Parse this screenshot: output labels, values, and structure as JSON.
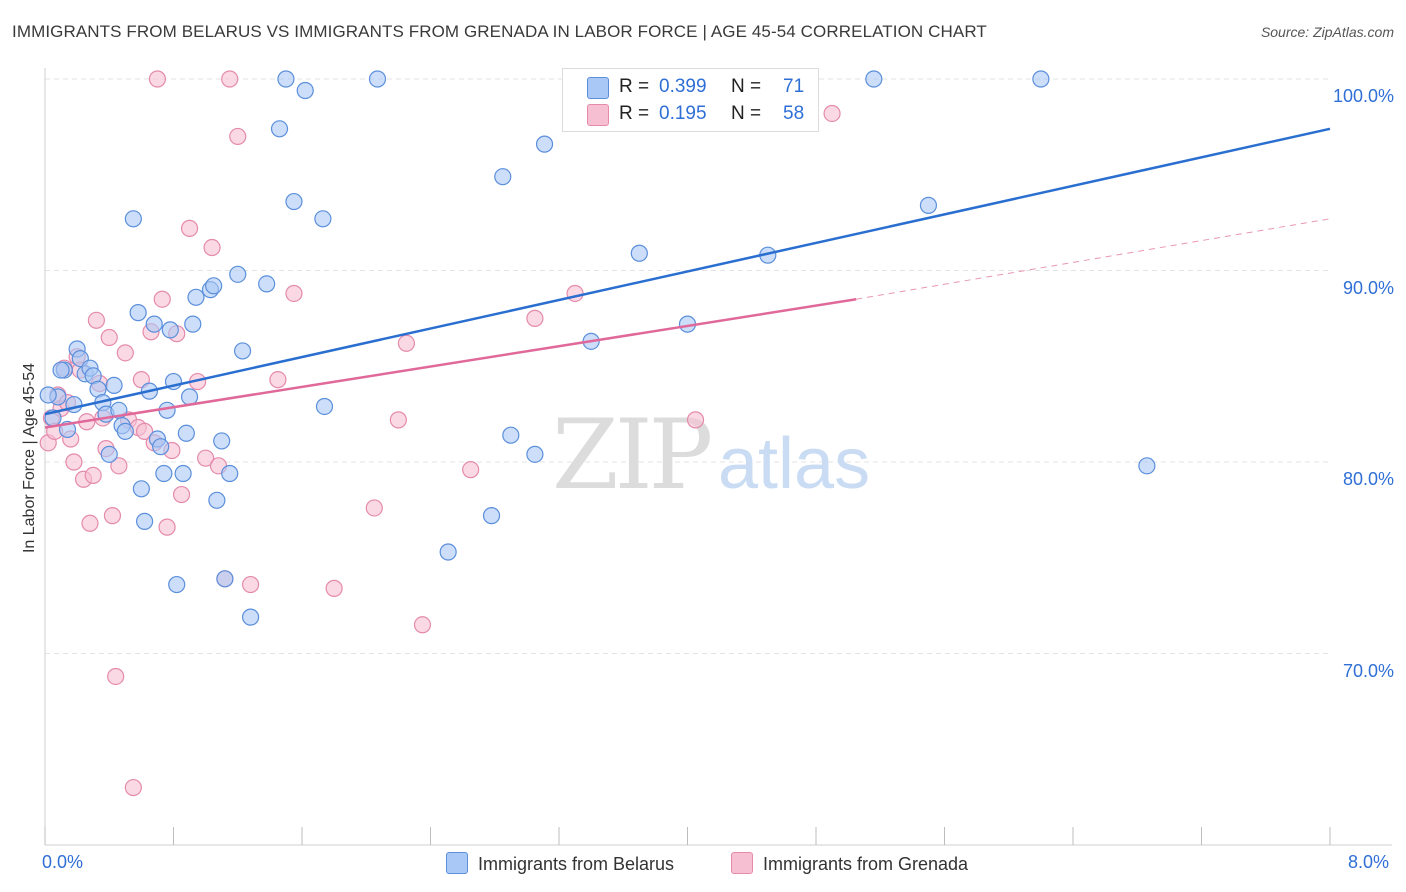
{
  "title": "IMMIGRANTS FROM BELARUS VS IMMIGRANTS FROM GRENADA IN LABOR FORCE | AGE 45-54 CORRELATION CHART",
  "source": "Source: ZipAtlas.com",
  "watermark": {
    "zip": "ZIP",
    "atlas": "atlas"
  },
  "legend": {
    "rows": [
      {
        "r_label": "R =",
        "r_value": "0.399",
        "n_label": "N =",
        "n_value": "71"
      },
      {
        "r_label": "R =",
        "r_value": "0.195",
        "n_label": "N =",
        "n_value": "58"
      }
    ]
  },
  "colors": {
    "belarus_fill": "#aac8f5",
    "belarus_stroke": "#5b8fdb",
    "belarus_line": "#2a6fd0",
    "grenada_fill": "#f7bfd2",
    "grenada_stroke": "#e58aac",
    "grenada_line": "#e0699a",
    "tick_label": "#2f6fd6",
    "grid": "#e3e3e3"
  },
  "chart_data": {
    "type": "scatter",
    "title": "IMMIGRANTS FROM BELARUS VS IMMIGRANTS FROM GRENADA IN LABOR FORCE | AGE 45-54 CORRELATION CHART",
    "xlabel": "",
    "ylabel": "In Labor Force | Age 45-54",
    "xlim": [
      0,
      8
    ],
    "ylim": [
      60,
      100
    ],
    "x_tick_labels": [
      "0.0%",
      "8.0%"
    ],
    "y_ticks": [
      70,
      80,
      90,
      100
    ],
    "y_tick_labels": [
      "70.0%",
      "80.0%",
      "90.0%",
      "100.0%"
    ],
    "grid": true,
    "series": [
      {
        "name": "Immigrants from Belarus",
        "r": 0.399,
        "n": 71,
        "trend": {
          "x": [
            0,
            8
          ],
          "y": [
            82.5,
            97.4
          ]
        },
        "points": [
          [
            0.05,
            82.3
          ],
          [
            0.08,
            83.4
          ],
          [
            0.12,
            84.8
          ],
          [
            0.14,
            81.7
          ],
          [
            0.18,
            83.0
          ],
          [
            0.2,
            85.9
          ],
          [
            0.22,
            85.4
          ],
          [
            0.25,
            84.6
          ],
          [
            0.28,
            84.9
          ],
          [
            0.3,
            84.5
          ],
          [
            0.33,
            83.8
          ],
          [
            0.36,
            83.1
          ],
          [
            0.38,
            82.5
          ],
          [
            0.4,
            80.4
          ],
          [
            0.43,
            84.0
          ],
          [
            0.46,
            82.7
          ],
          [
            0.48,
            81.9
          ],
          [
            0.5,
            81.6
          ],
          [
            0.55,
            92.7
          ],
          [
            0.58,
            87.8
          ],
          [
            0.6,
            78.6
          ],
          [
            0.62,
            76.9
          ],
          [
            0.65,
            83.7
          ],
          [
            0.68,
            87.2
          ],
          [
            0.7,
            81.2
          ],
          [
            0.72,
            80.8
          ],
          [
            0.74,
            79.4
          ],
          [
            0.76,
            82.7
          ],
          [
            0.78,
            86.9
          ],
          [
            0.8,
            84.2
          ],
          [
            0.82,
            73.6
          ],
          [
            0.86,
            79.4
          ],
          [
            0.88,
            81.5
          ],
          [
            0.9,
            83.4
          ],
          [
            0.92,
            87.2
          ],
          [
            0.94,
            88.6
          ],
          [
            1.03,
            89.0
          ],
          [
            1.05,
            89.2
          ],
          [
            1.07,
            78.0
          ],
          [
            1.1,
            81.1
          ],
          [
            1.12,
            73.9
          ],
          [
            1.15,
            79.4
          ],
          [
            1.2,
            89.8
          ],
          [
            1.23,
            85.8
          ],
          [
            1.28,
            71.9
          ],
          [
            1.38,
            89.3
          ],
          [
            1.46,
            97.4
          ],
          [
            1.5,
            100.0
          ],
          [
            1.55,
            93.6
          ],
          [
            1.62,
            99.4
          ],
          [
            1.73,
            92.7
          ],
          [
            1.74,
            82.9
          ],
          [
            2.07,
            100.0
          ],
          [
            2.51,
            75.3
          ],
          [
            2.78,
            77.2
          ],
          [
            2.85,
            94.9
          ],
          [
            2.9,
            81.4
          ],
          [
            3.05,
            80.4
          ],
          [
            3.11,
            96.6
          ],
          [
            3.4,
            86.3
          ],
          [
            3.7,
            90.9
          ],
          [
            3.97,
            100.0
          ],
          [
            4.0,
            87.2
          ],
          [
            4.3,
            100.0
          ],
          [
            4.5,
            90.8
          ],
          [
            5.16,
            100.0
          ],
          [
            5.5,
            93.4
          ],
          [
            6.2,
            100.0
          ],
          [
            6.86,
            79.8
          ],
          [
            0.02,
            83.5
          ],
          [
            0.1,
            84.8
          ]
        ]
      },
      {
        "name": "Immigrants from Grenada",
        "r": 0.195,
        "n": 58,
        "trend": {
          "x": [
            0,
            5.05
          ],
          "y": [
            81.8,
            88.5
          ]
        },
        "trend_dashed": {
          "x": [
            5.05,
            8
          ],
          "y": [
            88.5,
            92.7
          ]
        },
        "points": [
          [
            0.02,
            81.0
          ],
          [
            0.04,
            82.3
          ],
          [
            0.06,
            81.6
          ],
          [
            0.08,
            83.5
          ],
          [
            0.1,
            82.8
          ],
          [
            0.12,
            84.9
          ],
          [
            0.14,
            83.1
          ],
          [
            0.16,
            81.2
          ],
          [
            0.18,
            80.0
          ],
          [
            0.2,
            85.5
          ],
          [
            0.22,
            84.8
          ],
          [
            0.24,
            79.1
          ],
          [
            0.26,
            82.1
          ],
          [
            0.28,
            76.8
          ],
          [
            0.3,
            79.3
          ],
          [
            0.32,
            87.4
          ],
          [
            0.34,
            84.1
          ],
          [
            0.36,
            82.3
          ],
          [
            0.38,
            80.7
          ],
          [
            0.4,
            86.5
          ],
          [
            0.42,
            77.2
          ],
          [
            0.44,
            68.8
          ],
          [
            0.46,
            79.8
          ],
          [
            0.5,
            85.7
          ],
          [
            0.52,
            82.2
          ],
          [
            0.55,
            63.0
          ],
          [
            0.58,
            81.8
          ],
          [
            0.6,
            84.3
          ],
          [
            0.62,
            81.6
          ],
          [
            0.66,
            86.8
          ],
          [
            0.68,
            81.0
          ],
          [
            0.7,
            100.0
          ],
          [
            0.73,
            88.5
          ],
          [
            0.76,
            76.6
          ],
          [
            0.79,
            80.6
          ],
          [
            0.82,
            86.7
          ],
          [
            0.85,
            78.3
          ],
          [
            0.9,
            92.2
          ],
          [
            0.95,
            84.2
          ],
          [
            1.0,
            80.2
          ],
          [
            1.04,
            91.2
          ],
          [
            1.08,
            79.8
          ],
          [
            1.12,
            73.9
          ],
          [
            1.15,
            100.0
          ],
          [
            1.2,
            97.0
          ],
          [
            1.28,
            73.6
          ],
          [
            1.45,
            84.3
          ],
          [
            1.55,
            88.8
          ],
          [
            1.8,
            73.4
          ],
          [
            2.05,
            77.6
          ],
          [
            2.2,
            82.2
          ],
          [
            2.25,
            86.2
          ],
          [
            2.35,
            71.5
          ],
          [
            2.65,
            79.6
          ],
          [
            3.05,
            87.5
          ],
          [
            3.3,
            88.8
          ],
          [
            4.05,
            82.2
          ],
          [
            4.9,
            98.2
          ]
        ]
      }
    ]
  },
  "axis": {
    "y_label": "In Labor Force | Age 45-54",
    "x_min_label": "0.0%",
    "x_max_label": "8.0%"
  },
  "bottom_legend": {
    "belarus": "Immigrants from Belarus",
    "grenada": "Immigrants from Grenada"
  }
}
